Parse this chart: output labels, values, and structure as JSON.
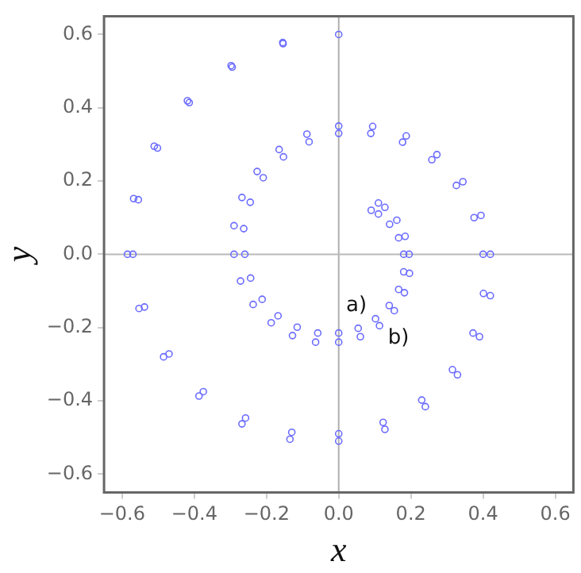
{
  "chart_data": {
    "type": "scatter",
    "xlabel": "x",
    "ylabel": "y",
    "marker": "circle",
    "grid": false,
    "legend": false,
    "xlim": [
      -0.65,
      0.65
    ],
    "ylim": [
      -0.65,
      0.65
    ],
    "xticks": [
      {
        "value": -0.6,
        "label": "−0.6"
      },
      {
        "value": -0.4,
        "label": "−0.4"
      },
      {
        "value": -0.2,
        "label": "−0.2"
      },
      {
        "value": 0,
        "label": "0.0"
      },
      {
        "value": 0.2,
        "label": "0.2"
      },
      {
        "value": 0.4,
        "label": "0.4"
      },
      {
        "value": 0.6,
        "label": "0.6"
      }
    ],
    "yticks": [
      {
        "value": -0.6,
        "label": "−0.6"
      },
      {
        "value": -0.4,
        "label": "−0.4"
      },
      {
        "value": -0.2,
        "label": "−0.2"
      },
      {
        "value": 0,
        "label": "0.0"
      },
      {
        "value": 0.2,
        "label": "0.2"
      },
      {
        "value": 0.4,
        "label": "0.4"
      },
      {
        "value": 0.6,
        "label": "0.6"
      }
    ],
    "ref_lines": [
      {
        "axis": "x",
        "value": 0,
        "color": "#b0b0b0"
      },
      {
        "axis": "y",
        "value": 0,
        "color": "#bababa"
      }
    ],
    "series": [
      {
        "name": "a)",
        "color": "#6b6bff",
        "x": [
          0.09,
          0.11,
          0.141,
          0.166,
          0.18,
          0.18,
          0.166,
          0.14,
          0.102,
          0.054,
          0,
          -0.058,
          -0.115,
          -0.168,
          -0.212,
          -0.244,
          -0.26,
          -0.263,
          -0.245,
          -0.209,
          -0.153,
          -0.082,
          0,
          0.089,
          0.177,
          0.258,
          0.326,
          0.375,
          0.4,
          0.401,
          0.372,
          0.315,
          0.23,
          0.123,
          0,
          -0.13,
          -0.258,
          -0.375,
          -0.47,
          -0.538,
          -0.57,
          -0.555,
          -0.502,
          -0.414,
          -0.295,
          -0.154,
          0
        ],
        "values": [
          0.12,
          0.11,
          0.082,
          0.045,
          0,
          -0.048,
          -0.096,
          -0.14,
          -0.176,
          -0.202,
          -0.215,
          -0.215,
          -0.199,
          -0.168,
          -0.123,
          -0.065,
          0,
          0.07,
          0.142,
          0.209,
          0.266,
          0.307,
          0.33,
          0.33,
          0.306,
          0.258,
          0.188,
          0.1,
          0,
          -0.107,
          -0.215,
          -0.315,
          -0.398,
          -0.459,
          -0.49,
          -0.486,
          -0.447,
          -0.375,
          -0.272,
          -0.144,
          0,
          0.149,
          0.29,
          0.414,
          0.511,
          0.575,
          0.6
        ]
      },
      {
        "name": "b)",
        "color": "#6b6bff",
        "x": [
          0.11,
          0.128,
          0.161,
          0.184,
          0.195,
          0.196,
          0.182,
          0.154,
          0.113,
          0.06,
          0,
          -0.064,
          -0.128,
          -0.187,
          -0.237,
          -0.272,
          -0.29,
          -0.29,
          -0.268,
          -0.226,
          -0.165,
          -0.088,
          0,
          0.094,
          0.187,
          0.272,
          0.344,
          0.394,
          0.42,
          0.42,
          0.39,
          0.329,
          0.24,
          0.128,
          0,
          -0.135,
          -0.268,
          -0.387,
          -0.485,
          -0.553,
          -0.585,
          -0.568,
          -0.511,
          -0.419,
          -0.298,
          -0.155
        ],
        "values": [
          0.14,
          0.128,
          0.093,
          0.049,
          0,
          -0.052,
          -0.105,
          -0.154,
          -0.195,
          -0.225,
          -0.24,
          -0.24,
          -0.222,
          -0.187,
          -0.137,
          -0.073,
          0,
          0.078,
          0.155,
          0.226,
          0.286,
          0.328,
          0.35,
          0.349,
          0.323,
          0.272,
          0.198,
          0.106,
          0,
          -0.113,
          -0.225,
          -0.329,
          -0.416,
          -0.478,
          -0.51,
          -0.505,
          -0.463,
          -0.387,
          -0.28,
          -0.148,
          0,
          0.152,
          0.295,
          0.419,
          0.515,
          0.578
        ]
      }
    ]
  }
}
